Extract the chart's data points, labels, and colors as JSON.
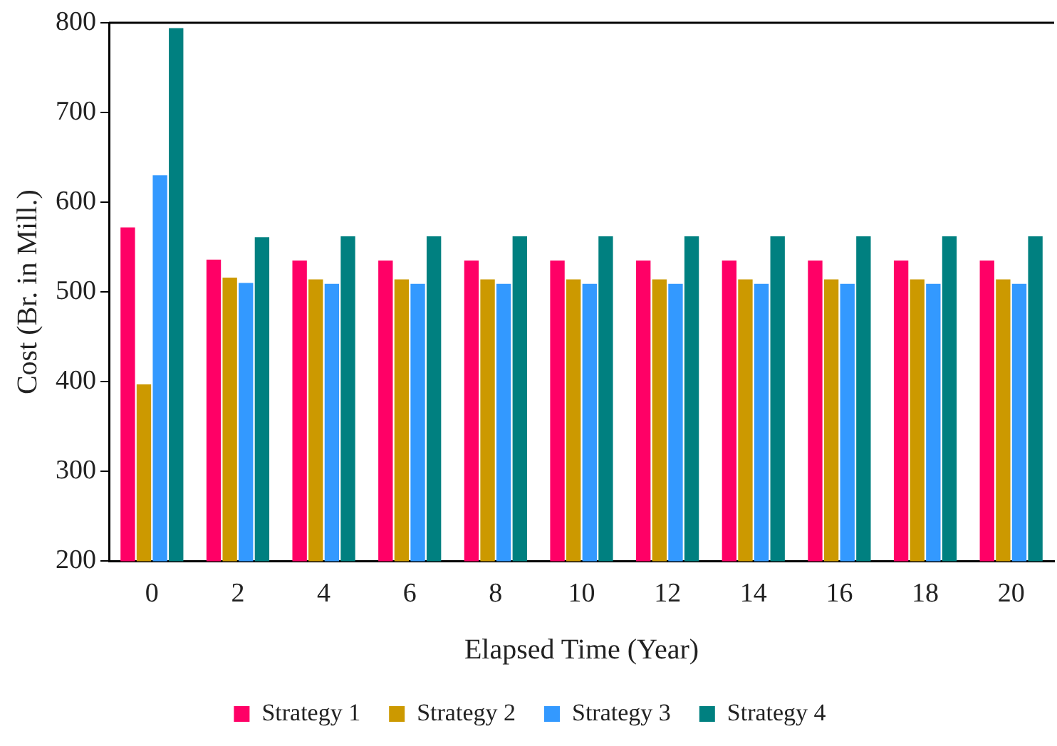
{
  "chart_data": {
    "type": "bar",
    "xlabel": "Elapsed Time (Year)",
    "ylabel": "Cost (Br. in Mill.)",
    "categories": [
      "0",
      "2",
      "4",
      "6",
      "8",
      "10",
      "12",
      "14",
      "16",
      "18",
      "20"
    ],
    "series": [
      {
        "name": "Strategy 1",
        "color": "#ff0066",
        "values": [
          572,
          536,
          535,
          535,
          535,
          535,
          535,
          535,
          535,
          535,
          535
        ]
      },
      {
        "name": "Strategy 2",
        "color": "#cc9900",
        "values": [
          397,
          516,
          514,
          514,
          514,
          514,
          514,
          514,
          514,
          514,
          514
        ]
      },
      {
        "name": "Strategy 3",
        "color": "#3399ff",
        "values": [
          630,
          510,
          509,
          509,
          509,
          509,
          509,
          509,
          509,
          509,
          509
        ]
      },
      {
        "name": "Strategy 4",
        "color": "#008080",
        "values": [
          794,
          561,
          562,
          562,
          562,
          562,
          562,
          562,
          562,
          562,
          562
        ]
      }
    ],
    "ylim": [
      200,
      800
    ],
    "yticks": [
      200,
      300,
      400,
      500,
      600,
      700,
      800
    ],
    "grid": false,
    "legend": "bottom"
  }
}
